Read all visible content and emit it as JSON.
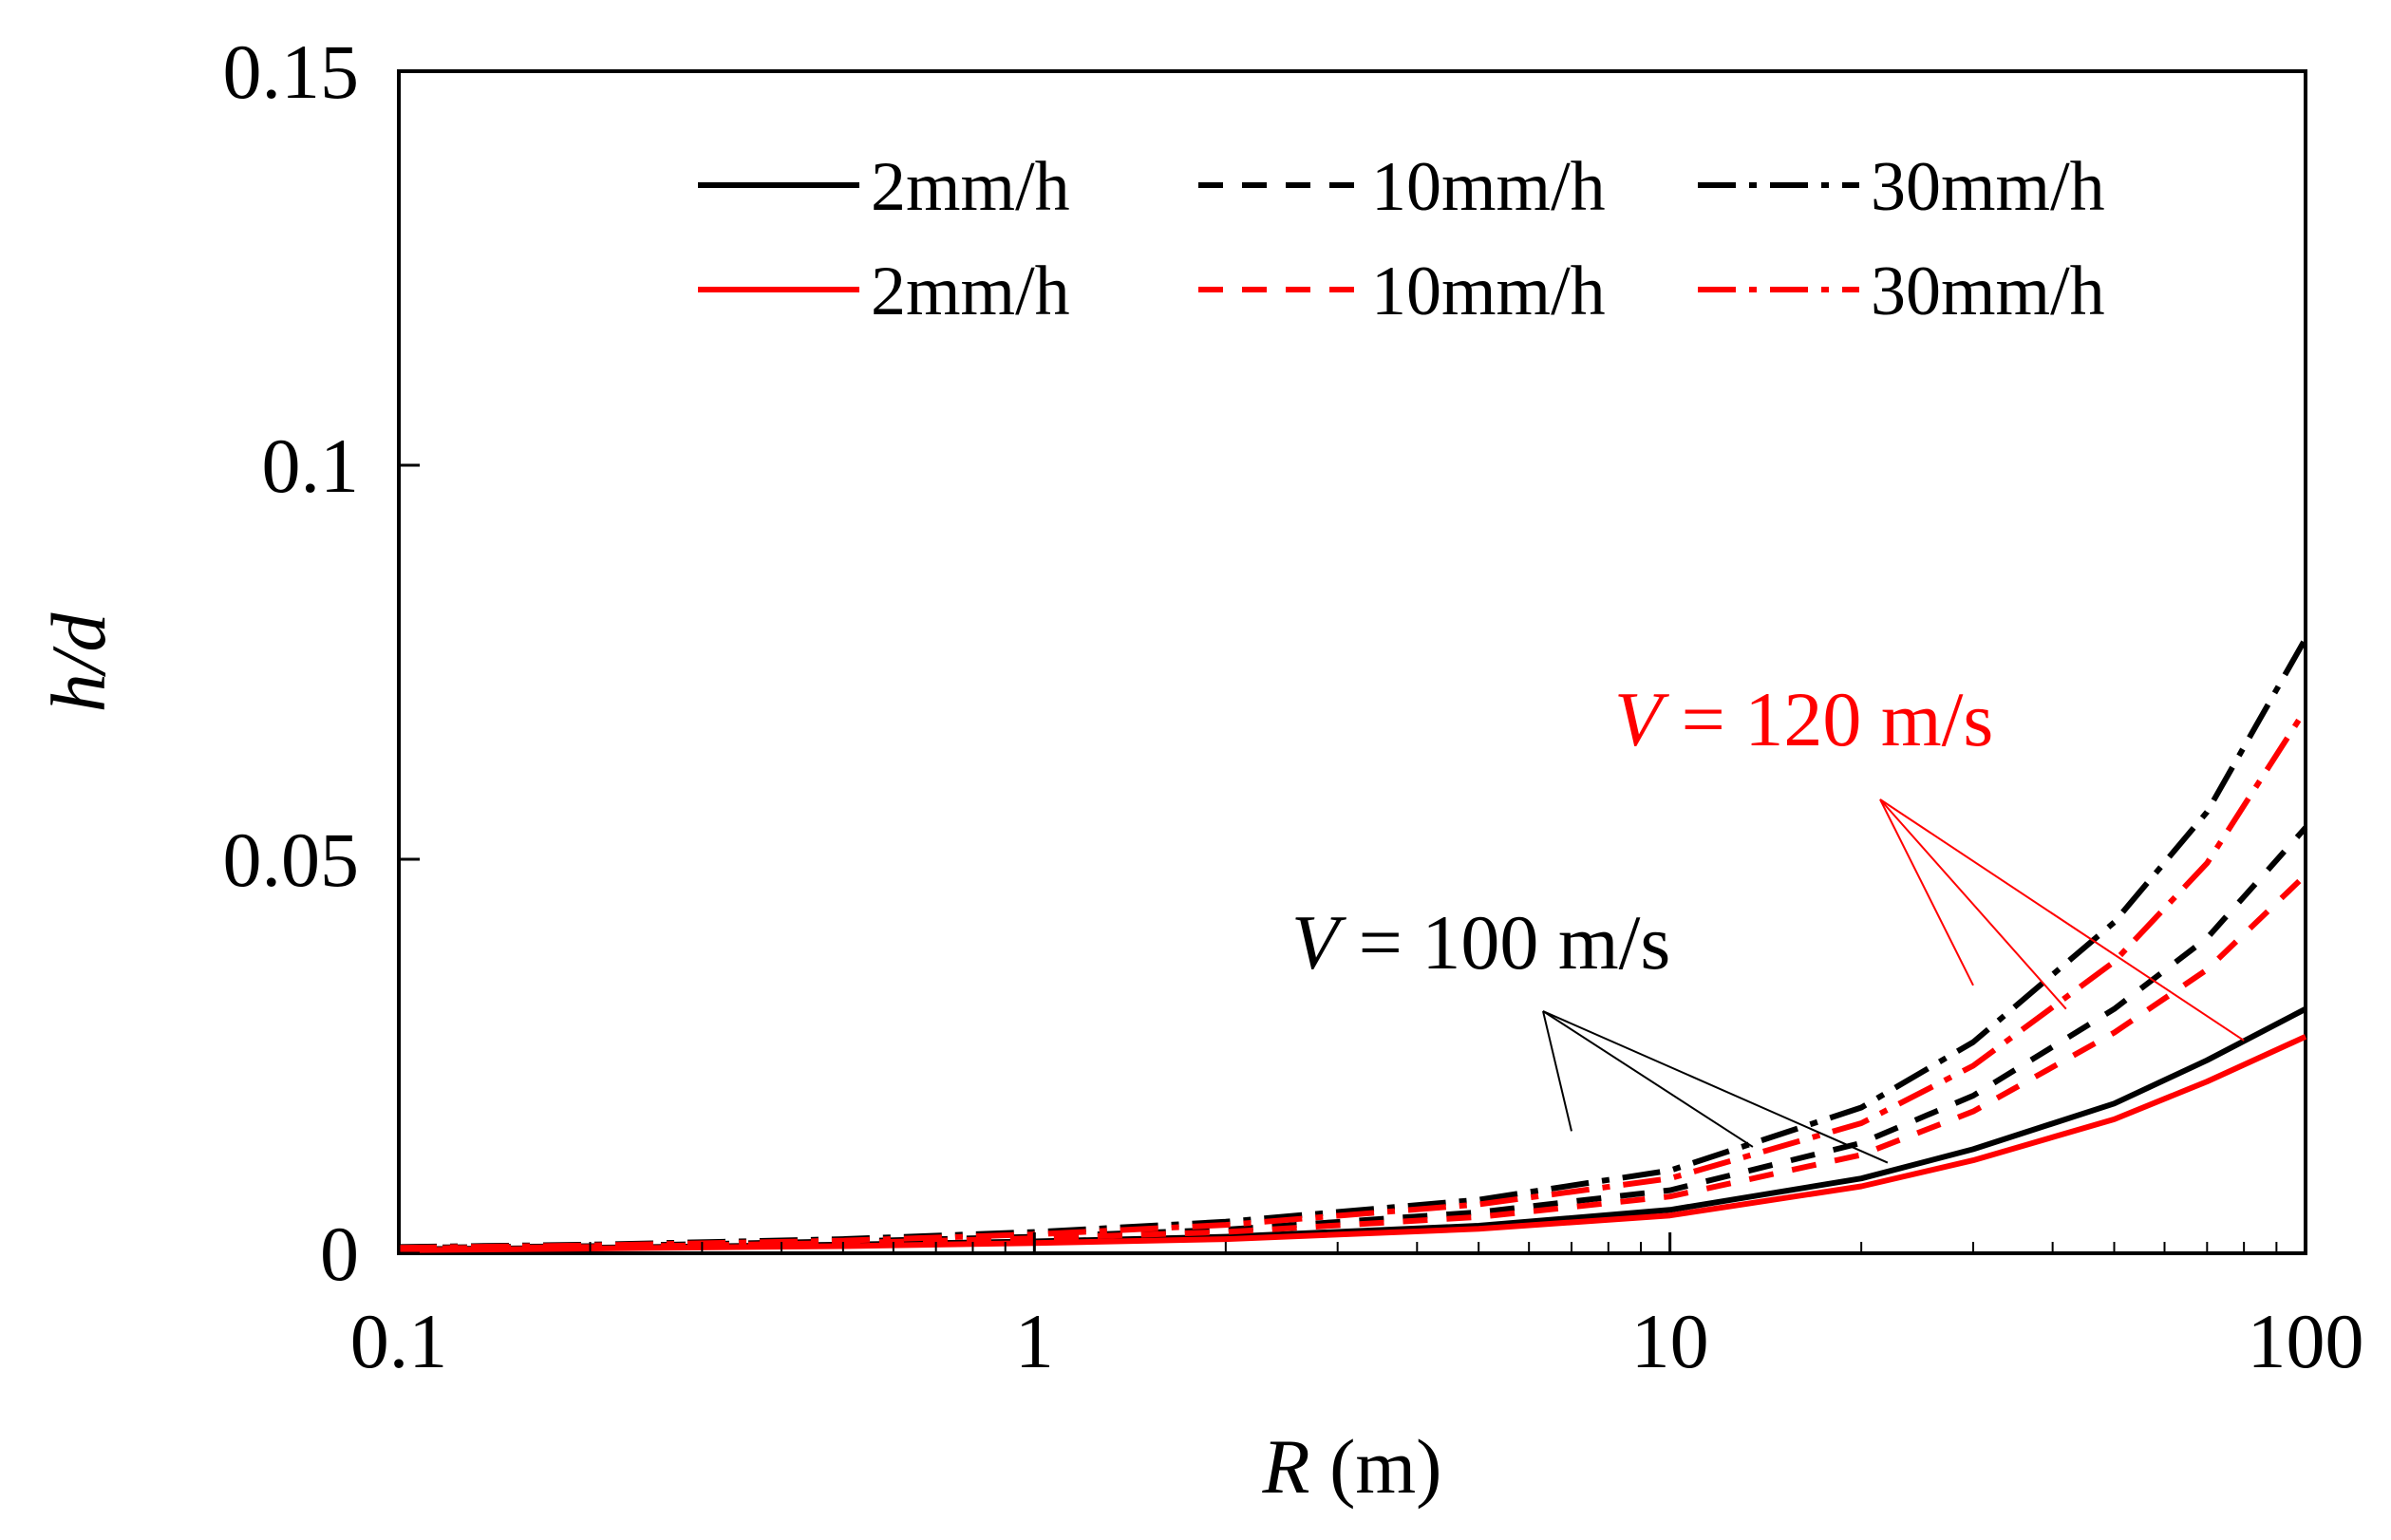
{
  "chart_data": {
    "type": "line",
    "title": "",
    "xlabel": {
      "symbol": "R",
      "unit": " (m)"
    },
    "ylabel": {
      "symbol": "h/d"
    },
    "xscale": "log",
    "xlim": [
      0.1,
      100
    ],
    "ylim": [
      0,
      0.15
    ],
    "xticks": [
      0.1,
      1,
      10,
      100
    ],
    "xtick_labels": [
      "0.1",
      "1",
      "10",
      "100"
    ],
    "yticks": [
      0,
      0.05,
      0.1,
      0.15
    ],
    "ytick_labels": [
      "0",
      "0.05",
      "0.1",
      "0.15"
    ],
    "grid": false,
    "legend": {
      "placement": "top-right",
      "columns": 3
    },
    "x": [
      0.1,
      0.2,
      0.5,
      1,
      2,
      5,
      10,
      20,
      30,
      50,
      70,
      100
    ],
    "series": [
      {
        "name": "2mm/h",
        "group": "V = 100 m/s",
        "color": "#000000",
        "dash": "solid",
        "values": [
          0.0005,
          0.0007,
          0.0011,
          0.0015,
          0.0021,
          0.0035,
          0.0055,
          0.0095,
          0.0132,
          0.019,
          0.0245,
          0.031
        ]
      },
      {
        "name": "10mm/h",
        "group": "V = 100 m/s",
        "color": "#000000",
        "dash": "dash",
        "values": [
          0.0007,
          0.0009,
          0.0015,
          0.0021,
          0.003,
          0.0052,
          0.008,
          0.014,
          0.02,
          0.031,
          0.04,
          0.054
        ]
      },
      {
        "name": "30mm/h",
        "group": "V = 100 m/s",
        "color": "#000000",
        "dash": "dashdot",
        "values": [
          0.0008,
          0.0011,
          0.0018,
          0.0027,
          0.004,
          0.0068,
          0.0105,
          0.0185,
          0.0268,
          0.042,
          0.056,
          0.078
        ]
      },
      {
        "name": "2mm/h",
        "group": "V = 120 m/s",
        "color": "#ff0000",
        "dash": "solid",
        "values": [
          0.0004,
          0.0006,
          0.0009,
          0.0013,
          0.0018,
          0.0031,
          0.0048,
          0.0085,
          0.0118,
          0.017,
          0.0218,
          0.0275
        ]
      },
      {
        "name": "10mm/h",
        "group": "V = 120 m/s",
        "color": "#ff0000",
        "dash": "dash",
        "values": [
          0.0006,
          0.0008,
          0.0013,
          0.0019,
          0.0027,
          0.0046,
          0.0072,
          0.0125,
          0.018,
          0.028,
          0.036,
          0.048
        ]
      },
      {
        "name": "30mm/h",
        "group": "V = 120 m/s",
        "color": "#ff0000",
        "dash": "dashdot",
        "values": [
          0.0007,
          0.001,
          0.0016,
          0.0024,
          0.0036,
          0.0062,
          0.0095,
          0.0165,
          0.0238,
          0.037,
          0.0495,
          0.069
        ]
      }
    ],
    "annotations": [
      {
        "symbol": "V",
        "text": " = 100 m/s",
        "color": "#000000",
        "arrows_to": [
          {
            "x": 7.0,
            "y": 0.0155
          },
          {
            "x": 13.5,
            "y": 0.0135
          },
          {
            "x": 22,
            "y": 0.0115
          }
        ]
      },
      {
        "symbol": "V",
        "text": " = 120 m/s",
        "color": "#ff0000",
        "arrows_to": [
          {
            "x": 30,
            "y": 0.034
          },
          {
            "x": 42,
            "y": 0.031
          },
          {
            "x": 80,
            "y": 0.027
          }
        ]
      }
    ]
  }
}
